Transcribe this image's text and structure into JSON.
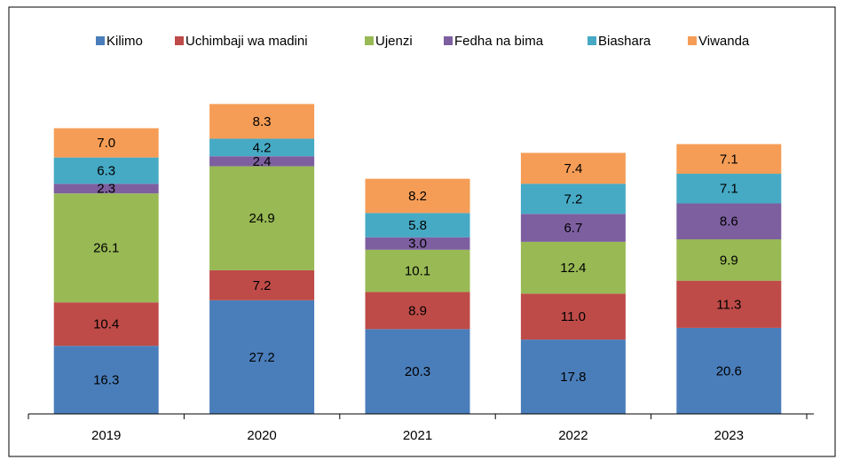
{
  "chart_data": {
    "type": "stacked_bar",
    "categories": [
      "2019",
      "2020",
      "2021",
      "2022",
      "2023"
    ],
    "series": [
      {
        "name": "Kilimo",
        "color": "#4a7ebb",
        "values": [
          16.3,
          27.2,
          20.3,
          17.8,
          20.6
        ],
        "value_labels": [
          "16.3",
          "27.2",
          "20.3",
          "17.8",
          "20.6"
        ]
      },
      {
        "name": "Uchimbaji wa madini",
        "color": "#be4b48",
        "values": [
          10.4,
          7.2,
          8.9,
          11.0,
          11.3
        ],
        "value_labels": [
          "10.4",
          "7.2",
          "8.9",
          "11.0",
          "11.3"
        ]
      },
      {
        "name": "Ujenzi",
        "color": "#98b954",
        "values": [
          26.1,
          24.9,
          10.1,
          12.4,
          9.9
        ],
        "value_labels": [
          "26.1",
          "24.9",
          "10.1",
          "12.4",
          "9.9"
        ]
      },
      {
        "name": "Fedha na bima",
        "color": "#7d5fa0",
        "values": [
          2.3,
          2.4,
          3.0,
          6.7,
          8.6
        ],
        "value_labels": [
          "2.3",
          "2.4",
          "3.0",
          "6.7",
          "8.6"
        ]
      },
      {
        "name": "Biashara",
        "color": "#46aac5",
        "values": [
          6.3,
          4.2,
          5.8,
          7.2,
          7.1
        ],
        "value_labels": [
          "6.3",
          "4.2",
          "5.8",
          "7.2",
          "7.1"
        ]
      },
      {
        "name": "Viwanda",
        "color": "#f59d56",
        "values": [
          7.0,
          8.3,
          8.2,
          7.4,
          7.1
        ],
        "value_labels": [
          "7.0",
          "8.3",
          "8.2",
          "7.4",
          "7.1"
        ]
      }
    ],
    "ylim": [
      0,
      80
    ],
    "legend": "top"
  }
}
